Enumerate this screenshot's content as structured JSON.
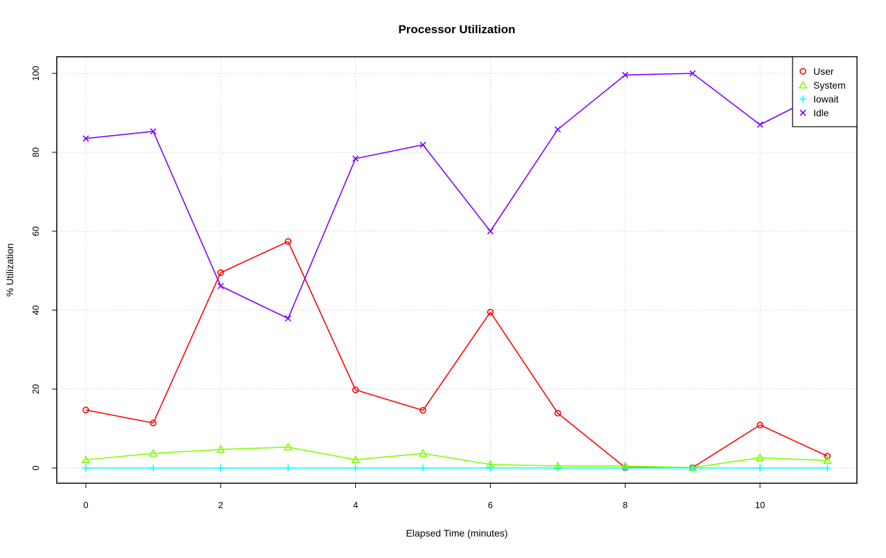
{
  "chart_data": {
    "type": "line",
    "title": "Processor Utilization",
    "xlabel": "Elapsed Time (minutes)",
    "ylabel": "% Utilization",
    "xlim": [
      0,
      11
    ],
    "ylim": [
      0,
      100
    ],
    "grid": true,
    "legend_position": "top-right",
    "x": [
      0,
      1,
      2,
      3,
      4,
      5,
      6,
      7,
      8,
      9,
      10,
      11
    ],
    "x_ticks": [
      "0",
      "2",
      "4",
      "6",
      "8",
      "10"
    ],
    "y_ticks": [
      "0",
      "20",
      "40",
      "60",
      "80",
      "100"
    ],
    "series": [
      {
        "name": "User",
        "color": "#ff0000",
        "marker": "circle",
        "values": [
          14.7,
          11.4,
          49.5,
          57.4,
          19.8,
          14.6,
          39.5,
          13.9,
          0.1,
          0.1,
          10.9,
          3.0
        ]
      },
      {
        "name": "System",
        "color": "#80ff00",
        "marker": "triangle",
        "values": [
          2.1,
          3.7,
          4.7,
          5.3,
          2.1,
          3.7,
          0.9,
          0.5,
          0.5,
          0.1,
          2.6,
          1.9
        ]
      },
      {
        "name": "Iowait",
        "color": "#00ffff",
        "marker": "plus",
        "values": [
          0,
          0,
          0,
          0,
          0,
          0,
          0,
          0,
          0,
          0,
          0,
          0
        ]
      },
      {
        "name": "Idle",
        "color": "#8000ff",
        "marker": "x",
        "values": [
          83.5,
          85.3,
          46.1,
          37.9,
          78.4,
          81.9,
          60.0,
          85.8,
          99.6,
          100.0,
          87.0,
          95.6
        ]
      }
    ]
  }
}
